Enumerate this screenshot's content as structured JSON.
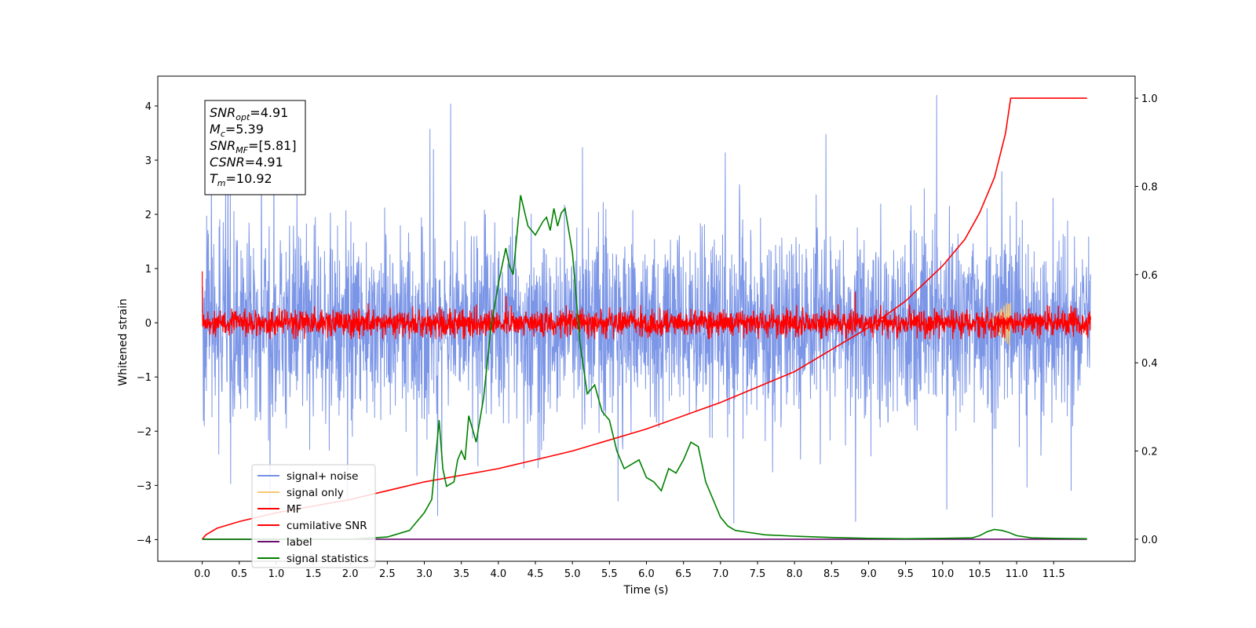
{
  "chart_data": {
    "type": "line",
    "xlabel": "Time (s)",
    "ylabel": "Whitened strain",
    "xlim": [
      -0.6,
      12.6
    ],
    "ylim": [
      -4.4,
      4.55
    ],
    "y2lim": [
      -0.05,
      1.05
    ],
    "xticks": [
      0.0,
      0.5,
      1.0,
      1.5,
      2.0,
      2.5,
      3.0,
      3.5,
      4.0,
      4.5,
      5.0,
      5.5,
      6.0,
      6.5,
      7.0,
      7.5,
      8.0,
      8.5,
      9.0,
      9.5,
      10.0,
      10.5,
      11.0,
      11.5
    ],
    "xtick_labels": [
      "0.0",
      "0.5",
      "1.0",
      "1.5",
      "2.0",
      "2.5",
      "3.0",
      "3.5",
      "4.0",
      "4.5",
      "5.0",
      "5.5",
      "6.0",
      "6.5",
      "7.0",
      "7.5",
      "8.0",
      "8.5",
      "9.0",
      "9.5",
      "10.0",
      "10.5",
      "11.0",
      "11.5"
    ],
    "yticks": [
      4,
      3,
      2,
      1,
      0,
      -1,
      -2,
      -3,
      -4
    ],
    "ytick_labels": [
      "4",
      "3",
      "2",
      "1",
      "0",
      "−1",
      "−2",
      "−3",
      "−4"
    ],
    "y2ticks": [
      1.0,
      0.8,
      0.6,
      0.4,
      0.2,
      0.0
    ],
    "y2tick_labels": [
      "1.0",
      "0.8",
      "0.6",
      "0.4",
      "0.2",
      "0.0"
    ],
    "annotation": [
      {
        "main": "SNR",
        "sub": "opt",
        "rest": "=4.91"
      },
      {
        "main": "M",
        "sub": "c",
        "rest": "=5.39"
      },
      {
        "main": "SNR",
        "sub": "MF",
        "rest": "=[5.81]"
      },
      {
        "main": "CSNR",
        "sub": "",
        "rest": "=4.91"
      },
      {
        "main": "T",
        "sub": "m",
        "rest": "=10.92"
      }
    ],
    "legend": {
      "placement": "lower-left",
      "entries": [
        {
          "label": "signal+ noise",
          "color": "#7590e6"
        },
        {
          "label": "signal only",
          "color": "#f7c873"
        },
        {
          "label": "MF",
          "color": "#ff0000"
        },
        {
          "label": "cumilative SNR",
          "color": "#ff0000"
        },
        {
          "label": "label",
          "color": "#6a0d6e"
        },
        {
          "label": "signal statistics",
          "color": "#008000"
        }
      ]
    },
    "series": [
      {
        "name": "signal+ noise",
        "axis": "left",
        "color": "#7590e6",
        "kind": "noise",
        "x_range": [
          0.0,
          12.0
        ],
        "mean": 0.0,
        "std": 1.0,
        "min": -3.7,
        "max": 4.2
      },
      {
        "name": "signal only",
        "axis": "left",
        "color": "#f7c873",
        "kind": "chirp",
        "x_range": [
          10.6,
          10.92
        ],
        "peak_abs": 0.45
      },
      {
        "name": "MF",
        "axis": "left",
        "color": "#ff0000",
        "kind": "noise",
        "x_range": [
          0.0,
          12.0
        ],
        "mean": 0.0,
        "std": 0.15,
        "min": -0.3,
        "max": 0.95
      },
      {
        "name": "cumilative SNR",
        "axis": "right",
        "color": "#ff0000",
        "kind": "line",
        "x": [
          0.0,
          0.05,
          0.2,
          0.5,
          1.0,
          2.0,
          3.0,
          4.0,
          5.0,
          6.0,
          7.0,
          8.0,
          8.5,
          9.0,
          9.5,
          10.0,
          10.3,
          10.5,
          10.7,
          10.85,
          10.92,
          11.0,
          11.5,
          11.95
        ],
        "y": [
          0.0,
          0.01,
          0.025,
          0.04,
          0.06,
          0.09,
          0.13,
          0.16,
          0.2,
          0.25,
          0.31,
          0.38,
          0.43,
          0.48,
          0.54,
          0.62,
          0.68,
          0.74,
          0.82,
          0.92,
          1.0,
          1.0,
          1.0,
          1.0
        ]
      },
      {
        "name": "label",
        "axis": "right",
        "color": "#6a0d6e",
        "kind": "line",
        "x": [
          0.0,
          11.95
        ],
        "y": [
          0.0,
          0.0
        ]
      },
      {
        "name": "signal statistics",
        "axis": "right",
        "color": "#008000",
        "kind": "line",
        "x": [
          0.0,
          0.5,
          1.0,
          1.5,
          2.0,
          2.5,
          2.6,
          2.8,
          2.9,
          3.0,
          3.1,
          3.2,
          3.25,
          3.3,
          3.4,
          3.45,
          3.5,
          3.55,
          3.6,
          3.65,
          3.7,
          3.8,
          3.9,
          4.0,
          4.1,
          4.15,
          4.2,
          4.3,
          4.4,
          4.5,
          4.6,
          4.65,
          4.7,
          4.75,
          4.8,
          4.85,
          4.9,
          5.0,
          5.1,
          5.2,
          5.3,
          5.4,
          5.5,
          5.6,
          5.7,
          5.8,
          5.9,
          6.0,
          6.1,
          6.2,
          6.3,
          6.4,
          6.5,
          6.6,
          6.7,
          6.8,
          6.9,
          7.0,
          7.1,
          7.2,
          7.4,
          7.6,
          8.0,
          8.5,
          9.0,
          9.5,
          10.0,
          10.4,
          10.5,
          10.6,
          10.7,
          10.8,
          10.9,
          11.0,
          11.2,
          11.5,
          11.95
        ],
        "y": [
          0.0,
          0.0,
          0.0,
          0.0,
          0.0,
          0.005,
          0.01,
          0.02,
          0.04,
          0.06,
          0.09,
          0.27,
          0.16,
          0.12,
          0.13,
          0.18,
          0.2,
          0.18,
          0.28,
          0.25,
          0.22,
          0.32,
          0.48,
          0.58,
          0.66,
          0.62,
          0.6,
          0.78,
          0.71,
          0.69,
          0.72,
          0.73,
          0.7,
          0.75,
          0.71,
          0.74,
          0.75,
          0.65,
          0.45,
          0.33,
          0.35,
          0.29,
          0.27,
          0.2,
          0.16,
          0.17,
          0.18,
          0.14,
          0.13,
          0.11,
          0.16,
          0.15,
          0.18,
          0.22,
          0.21,
          0.13,
          0.09,
          0.05,
          0.03,
          0.02,
          0.015,
          0.01,
          0.007,
          0.004,
          0.002,
          0.001,
          0.002,
          0.003,
          0.008,
          0.017,
          0.022,
          0.02,
          0.015,
          0.008,
          0.003,
          0.002,
          0.001
        ]
      }
    ]
  }
}
